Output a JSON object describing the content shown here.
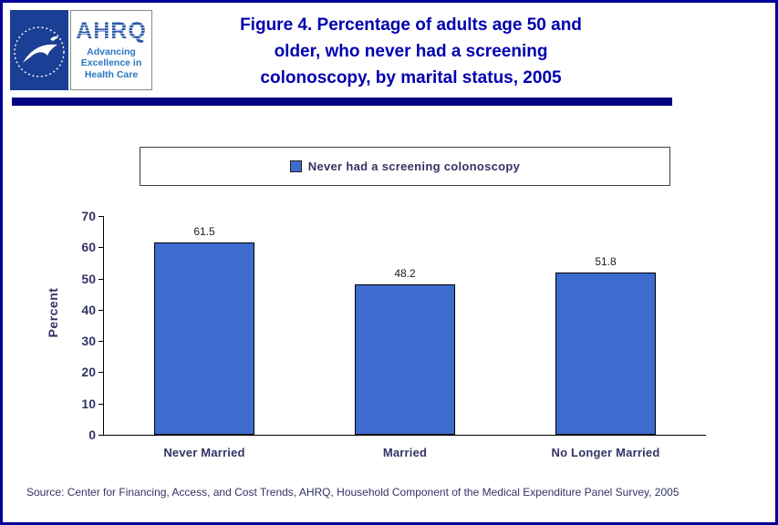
{
  "colors": {
    "page_border": "#000099",
    "header_rule": "#000080",
    "title_text": "#0000B0",
    "axis_text": "#333366",
    "legend_text": "#333366",
    "bar_fill": "#3D6BCE",
    "source_text": "#333366",
    "hhs_logo_blue": "#1B3F94",
    "ahrq_blue": "#2B5BA8"
  },
  "header": {
    "title_lines": [
      "Figure 4. Percentage of adults age 50 and",
      "older, who never had a screening",
      "colonoscopy, by marital status, 2005"
    ],
    "ahrq": {
      "acronym": "AHRQ",
      "tagline": [
        "Advancing",
        "Excellence in",
        "Health Care"
      ]
    }
  },
  "legend": {
    "label": "Never had a screening colonoscopy"
  },
  "chart_data": {
    "type": "bar",
    "title": "Figure 4. Percentage of adults age 50 and older, who never had a screening colonoscopy, by marital status, 2005",
    "categories": [
      "Never Married",
      "Married",
      "No Longer Married"
    ],
    "series": [
      {
        "name": "Never had a screening colonoscopy",
        "values": [
          61.5,
          48.2,
          51.8
        ]
      }
    ],
    "xlabel": "",
    "ylabel": "Percent",
    "ylim": [
      0,
      70
    ],
    "yticks": [
      0,
      10,
      20,
      30,
      40,
      50,
      60,
      70
    ],
    "bar_color": "#3D6BCE",
    "grid": false,
    "legend_position": "top"
  },
  "footer": {
    "source": "Source: Center for Financing, Access, and Cost Trends, AHRQ, Household Component of the Medical Expenditure Panel Survey, 2005"
  }
}
